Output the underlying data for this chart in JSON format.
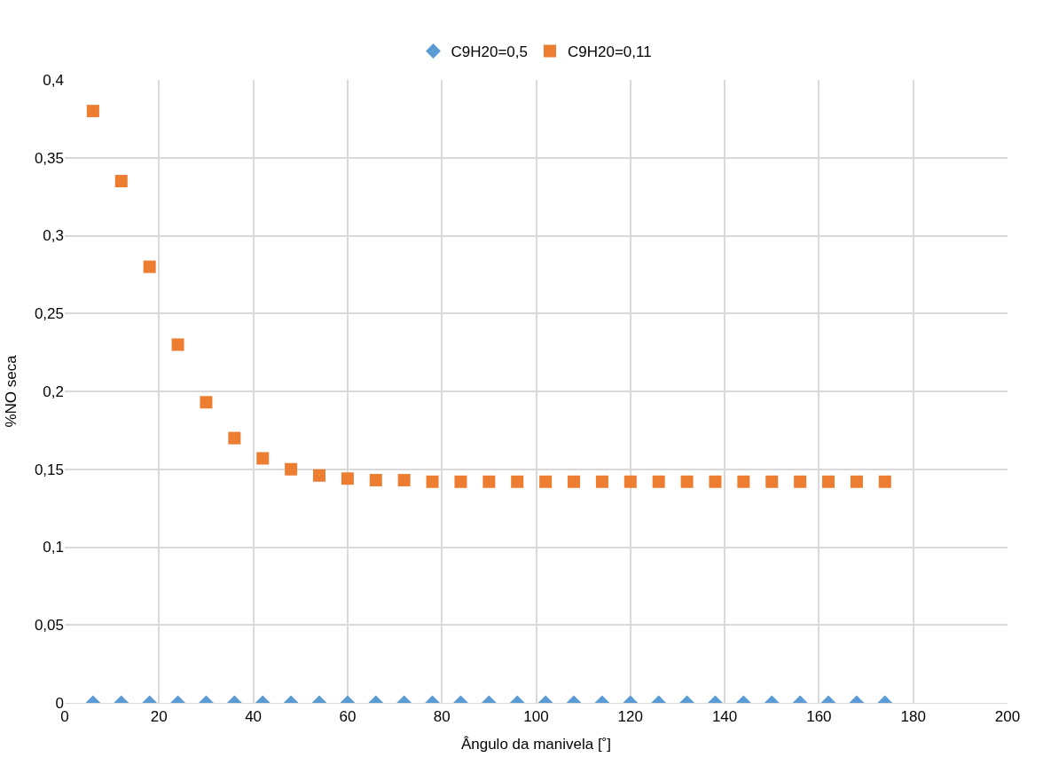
{
  "chart_data": {
    "type": "scatter",
    "xlabel": "Ângulo da manivela [˚]",
    "ylabel": "%NO seca",
    "x": [
      6,
      12,
      18,
      24,
      30,
      36,
      42,
      48,
      54,
      60,
      66,
      72,
      78,
      84,
      90,
      96,
      102,
      108,
      114,
      120,
      126,
      132,
      138,
      144,
      150,
      156,
      162,
      168,
      174
    ],
    "series": [
      {
        "name": "C9H20=0,5",
        "color": "#5b9bd5",
        "marker": "diamond",
        "values": [
          0,
          0,
          0,
          0,
          0,
          0,
          0,
          0,
          0,
          0,
          0,
          0,
          0,
          0,
          0,
          0,
          0,
          0,
          0,
          0,
          0,
          0,
          0,
          0,
          0,
          0,
          0,
          0,
          0
        ]
      },
      {
        "name": "C9H20=0,11",
        "color": "#ed7d31",
        "marker": "square",
        "values": [
          0.38,
          0.335,
          0.28,
          0.23,
          0.193,
          0.17,
          0.157,
          0.15,
          0.146,
          0.144,
          0.143,
          0.143,
          0.142,
          0.142,
          0.142,
          0.142,
          0.142,
          0.142,
          0.142,
          0.142,
          0.142,
          0.142,
          0.142,
          0.142,
          0.142,
          0.142,
          0.142,
          0.142,
          0.142
        ]
      }
    ],
    "xlim": [
      0,
      200
    ],
    "xticks": [
      0,
      20,
      40,
      60,
      80,
      100,
      120,
      140,
      160,
      180,
      200
    ],
    "ylim": [
      0,
      0.4
    ],
    "yticks": [
      {
        "value": 0,
        "label": "0"
      },
      {
        "value": 0.05,
        "label": "0,05"
      },
      {
        "value": 0.1,
        "label": "0,1"
      },
      {
        "value": 0.15,
        "label": "0,15"
      },
      {
        "value": 0.2,
        "label": "0,2"
      },
      {
        "value": 0.25,
        "label": "0,25"
      },
      {
        "value": 0.3,
        "label": "0,3"
      },
      {
        "value": 0.35,
        "label": "0,35"
      },
      {
        "value": 0.4,
        "label": "0,4"
      }
    ],
    "grid": true,
    "legend": "top"
  }
}
